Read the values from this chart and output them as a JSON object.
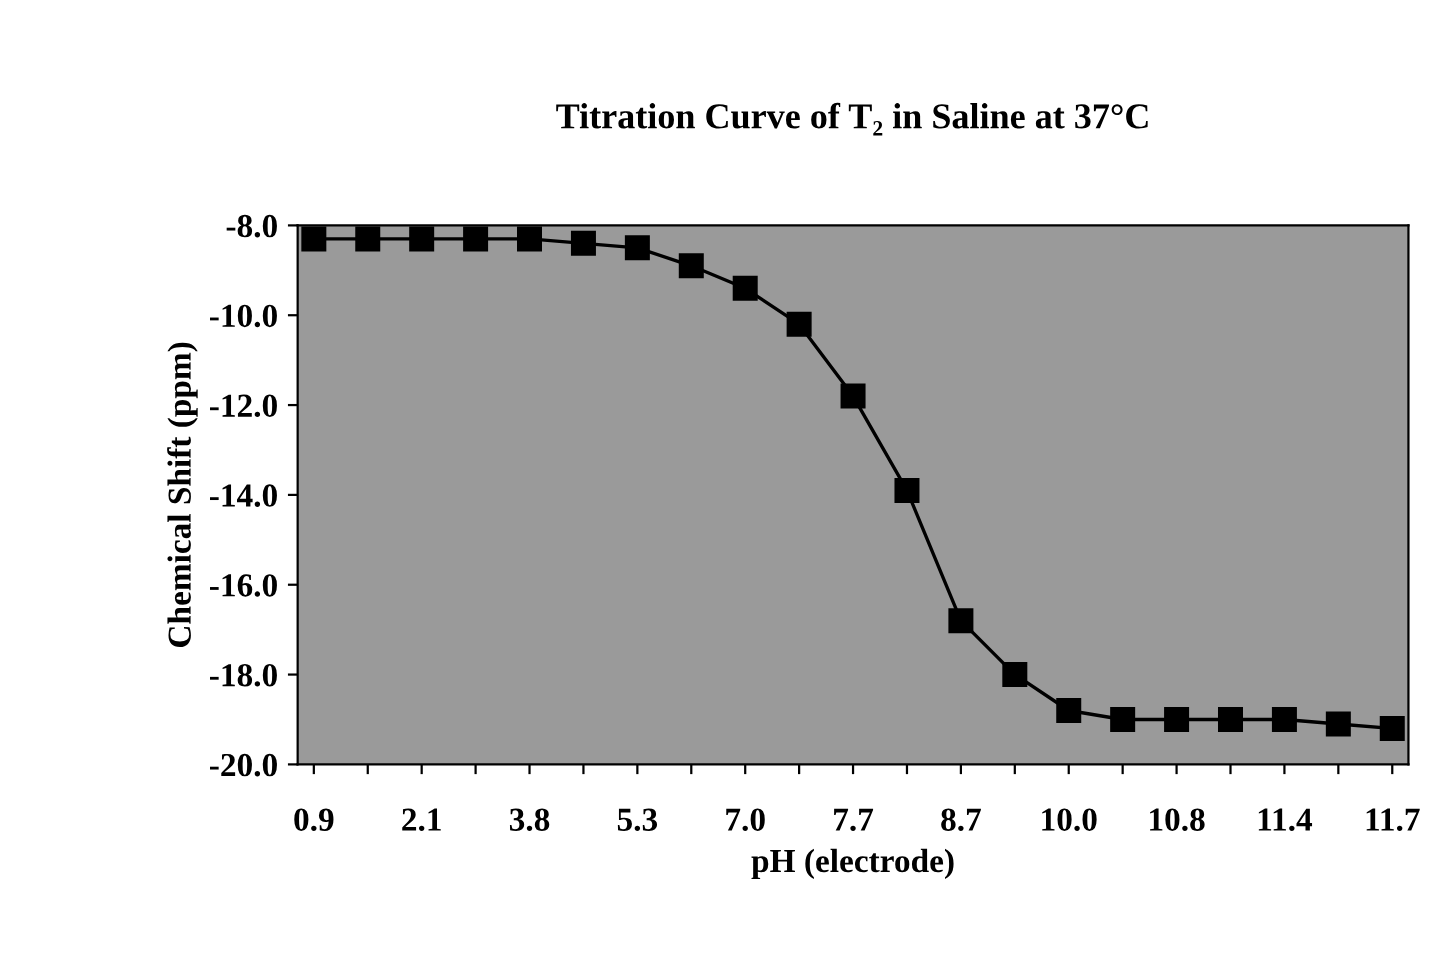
{
  "chart_data": {
    "type": "line",
    "title": "Titration Curve of T₂ in Saline at 37°C",
    "xlabel": "pH (electrode)",
    "ylabel": "Chemical Shift (ppm)",
    "categories": [
      "0.9",
      null,
      "2.1",
      null,
      "3.8",
      null,
      "5.3",
      null,
      "7.0",
      null,
      "7.7",
      null,
      "8.7",
      null,
      "10.0",
      null,
      "10.8",
      null,
      "11.4",
      null,
      "11.7"
    ],
    "series": [
      {
        "color": "#000000",
        "values": [
          -8.3,
          -8.3,
          -8.3,
          -8.3,
          -8.3,
          -8.4,
          -8.5,
          -8.9,
          -9.4,
          -10.2,
          -11.8,
          -13.9,
          -16.8,
          -18.0,
          -18.8,
          -19.0,
          -19.0,
          -19.0,
          -19.0,
          -19.1,
          -19.2
        ]
      }
    ],
    "ylim": [
      -20.0,
      -8.0
    ],
    "yticks": [
      {
        "value": -20,
        "label": "-20.0"
      },
      {
        "value": -18,
        "label": "-18.0"
      },
      {
        "value": -16,
        "label": "-16.0"
      },
      {
        "value": -14,
        "label": "-14.0"
      },
      {
        "value": -12,
        "label": "-12.0"
      },
      {
        "value": -10,
        "label": "-10.0"
      },
      {
        "value": -8,
        "label": "-8.0"
      }
    ],
    "marker": "square",
    "line_style": "solid",
    "grid": false,
    "legend": false
  }
}
